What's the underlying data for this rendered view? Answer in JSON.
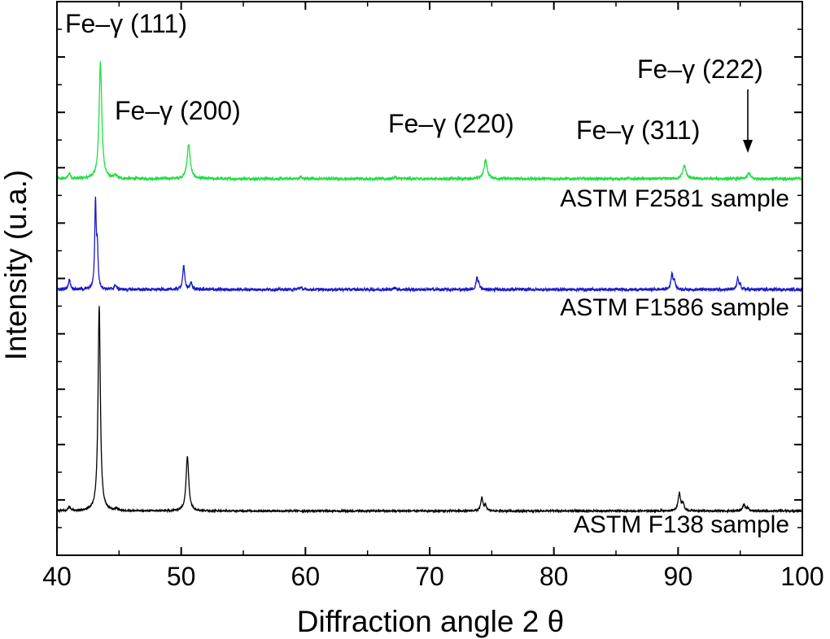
{
  "chart_data": {
    "type": "line",
    "xlabel": "Diffraction angle 2 θ",
    "ylabel": "Intensity (u.a.)",
    "xlim": [
      40,
      100
    ],
    "xticks": [
      "40",
      "50",
      "60",
      "70",
      "80",
      "90",
      "100"
    ],
    "y_tick_labels_shown": false,
    "grid": false,
    "legend": "none",
    "series": [
      {
        "name": "ASTM F2581 sample",
        "color": "#22dd44",
        "baseline": 0.68,
        "noise": 0.0025,
        "peaks": [
          {
            "x": 41.0,
            "h": 0.01,
            "w": 0.1
          },
          {
            "x": 43.5,
            "h": 0.21,
            "w": 0.13
          },
          {
            "x": 44.7,
            "h": 0.006,
            "w": 0.1
          },
          {
            "x": 50.6,
            "h": 0.062,
            "w": 0.15
          },
          {
            "x": 59.6,
            "h": 0.003,
            "w": 0.12
          },
          {
            "x": 67.2,
            "h": 0.003,
            "w": 0.12
          },
          {
            "x": 74.5,
            "h": 0.034,
            "w": 0.15
          },
          {
            "x": 90.5,
            "h": 0.024,
            "w": 0.15
          },
          {
            "x": 95.7,
            "h": 0.011,
            "w": 0.12
          }
        ]
      },
      {
        "name": "ASTM F1586 sample",
        "color": "#1a1acc",
        "baseline": 0.48,
        "noise": 0.0025,
        "peaks": [
          {
            "x": 41.0,
            "h": 0.018,
            "w": 0.1
          },
          {
            "x": 43.1,
            "h": 0.157,
            "w": 0.07
          },
          {
            "x": 43.25,
            "h": 0.07,
            "w": 0.07
          },
          {
            "x": 44.7,
            "h": 0.008,
            "w": 0.1
          },
          {
            "x": 50.2,
            "h": 0.042,
            "w": 0.1
          },
          {
            "x": 50.8,
            "h": 0.012,
            "w": 0.1
          },
          {
            "x": 59.6,
            "h": 0.004,
            "w": 0.12
          },
          {
            "x": 67.2,
            "h": 0.003,
            "w": 0.12
          },
          {
            "x": 73.8,
            "h": 0.021,
            "w": 0.08
          },
          {
            "x": 73.95,
            "h": 0.01,
            "w": 0.08
          },
          {
            "x": 89.5,
            "h": 0.028,
            "w": 0.09
          },
          {
            "x": 89.7,
            "h": 0.015,
            "w": 0.09
          },
          {
            "x": 94.8,
            "h": 0.02,
            "w": 0.08
          },
          {
            "x": 95.0,
            "h": 0.008,
            "w": 0.08
          }
        ]
      },
      {
        "name": "ASTM F138 sample",
        "color": "#000000",
        "baseline": 0.08,
        "noise": 0.0015,
        "peaks": [
          {
            "x": 41.0,
            "h": 0.008,
            "w": 0.1
          },
          {
            "x": 43.4,
            "h": 0.37,
            "w": 0.11
          },
          {
            "x": 44.8,
            "h": 0.004,
            "w": 0.1
          },
          {
            "x": 50.5,
            "h": 0.098,
            "w": 0.13
          },
          {
            "x": 74.2,
            "h": 0.024,
            "w": 0.1
          },
          {
            "x": 74.5,
            "h": 0.01,
            "w": 0.1
          },
          {
            "x": 90.1,
            "h": 0.032,
            "w": 0.12
          },
          {
            "x": 90.4,
            "h": 0.012,
            "w": 0.1
          },
          {
            "x": 95.3,
            "h": 0.012,
            "w": 0.1
          },
          {
            "x": 95.6,
            "h": 0.006,
            "w": 0.1
          }
        ]
      }
    ],
    "annotations": [
      {
        "text": "Fe–γ (111)"
      },
      {
        "text": "Fe–γ (200)"
      },
      {
        "text": "Fe–γ (220)"
      },
      {
        "text": "Fe–γ (311)"
      },
      {
        "text": "Fe–γ (222)"
      }
    ],
    "sample_labels": [
      {
        "text": "ASTM F2581 sample"
      },
      {
        "text": "ASTM F1586 sample"
      },
      {
        "text": "ASTM F138 sample"
      }
    ]
  }
}
